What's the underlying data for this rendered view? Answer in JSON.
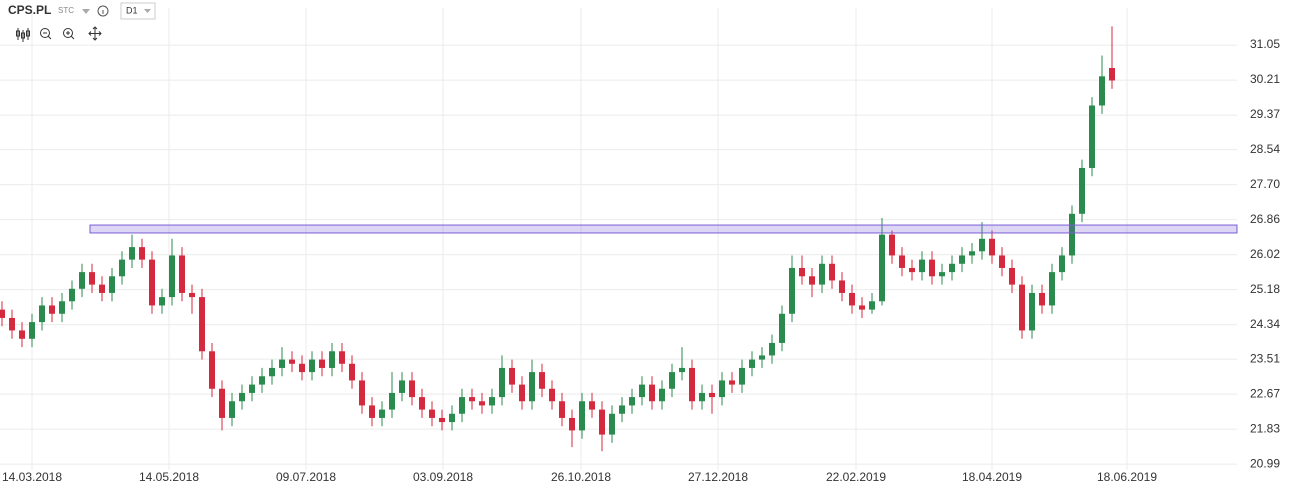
{
  "chart_data": {
    "type": "candlestick",
    "symbol": "CPS.PL",
    "source": "STC",
    "timeframe": "D1",
    "open": [
      24.7,
      24.5,
      24.2,
      24.0,
      24.4,
      24.8,
      24.6,
      24.9,
      25.2,
      25.6,
      25.3,
      25.1,
      25.5,
      25.9,
      26.2,
      25.9,
      24.8,
      25.0,
      26.0,
      25.1,
      25.0,
      23.7,
      22.8,
      22.1,
      22.5,
      22.7,
      22.9,
      23.1,
      23.3,
      23.5,
      23.4,
      23.2,
      23.5,
      23.3,
      23.7,
      23.4,
      23.0,
      22.4,
      22.1,
      22.3,
      22.7,
      23.0,
      22.6,
      22.3,
      22.1,
      22.0,
      22.2,
      22.6,
      22.5,
      22.4,
      22.6,
      23.3,
      22.9,
      22.5,
      23.2,
      22.8,
      22.5,
      22.1,
      21.8,
      22.5,
      22.3,
      21.7,
      22.2,
      22.4,
      22.6,
      22.9,
      22.5,
      22.8,
      23.2,
      23.3,
      22.5,
      22.7,
      22.6,
      23.0,
      22.9,
      23.3,
      23.5,
      23.6,
      23.9,
      24.6,
      25.7,
      25.5,
      25.3,
      25.8,
      25.4,
      25.1,
      24.8,
      24.7,
      24.9,
      26.5,
      26.0,
      25.7,
      25.6,
      25.9,
      25.5,
      25.6,
      25.8,
      26.0,
      26.1,
      26.4,
      26.0,
      25.7,
      25.3,
      24.2,
      25.1,
      24.8,
      25.6,
      26.0,
      27.0,
      28.1,
      29.6,
      30.5
    ],
    "high": [
      24.9,
      24.7,
      24.4,
      24.6,
      25.0,
      25.0,
      25.1,
      25.4,
      25.8,
      25.8,
      25.5,
      25.7,
      26.1,
      26.5,
      26.4,
      26.1,
      25.2,
      26.4,
      26.2,
      25.3,
      25.2,
      23.9,
      23.0,
      22.7,
      22.9,
      23.1,
      23.3,
      23.5,
      23.8,
      23.7,
      23.6,
      23.7,
      23.7,
      23.9,
      23.9,
      23.6,
      23.2,
      22.6,
      22.5,
      23.2,
      23.2,
      23.2,
      22.8,
      22.5,
      22.3,
      22.4,
      22.8,
      22.8,
      22.7,
      22.8,
      23.6,
      23.5,
      23.1,
      23.5,
      23.4,
      23.0,
      22.7,
      22.3,
      22.7,
      22.7,
      22.5,
      22.4,
      22.6,
      22.8,
      23.1,
      23.1,
      23.0,
      23.4,
      23.8,
      23.5,
      22.9,
      22.9,
      23.2,
      23.2,
      23.5,
      23.7,
      23.8,
      24.1,
      24.8,
      26.0,
      26.0,
      25.7,
      26.0,
      26.0,
      25.6,
      25.3,
      25.0,
      25.1,
      26.9,
      26.6,
      26.2,
      25.9,
      26.1,
      26.1,
      25.8,
      26.0,
      26.2,
      26.3,
      26.8,
      26.6,
      26.2,
      25.9,
      25.5,
      25.3,
      25.3,
      25.8,
      26.2,
      27.2,
      28.3,
      29.8,
      30.8,
      31.5
    ],
    "low": [
      24.3,
      24.0,
      23.8,
      23.8,
      24.2,
      24.4,
      24.4,
      24.7,
      25.0,
      25.1,
      24.9,
      24.9,
      25.3,
      25.7,
      25.7,
      24.6,
      24.6,
      24.8,
      24.9,
      24.6,
      23.5,
      22.6,
      21.8,
      21.9,
      22.3,
      22.5,
      22.7,
      22.9,
      23.1,
      23.2,
      23.0,
      23.0,
      23.1,
      23.1,
      23.2,
      22.8,
      22.2,
      21.9,
      21.9,
      22.1,
      22.5,
      22.4,
      22.1,
      21.9,
      21.8,
      21.8,
      22.0,
      22.3,
      22.2,
      22.2,
      22.4,
      22.7,
      22.3,
      22.3,
      22.6,
      22.3,
      21.9,
      21.4,
      21.6,
      22.1,
      21.3,
      21.5,
      22.0,
      22.2,
      22.4,
      22.3,
      22.3,
      22.6,
      23.0,
      22.3,
      22.3,
      22.2,
      22.4,
      22.7,
      22.7,
      23.1,
      23.3,
      23.4,
      23.7,
      24.4,
      25.3,
      25.0,
      25.1,
      25.2,
      24.9,
      24.6,
      24.5,
      24.6,
      24.8,
      25.8,
      25.5,
      25.4,
      25.4,
      25.3,
      25.3,
      25.4,
      25.6,
      25.8,
      25.9,
      25.8,
      25.5,
      25.1,
      24.0,
      24.0,
      24.6,
      24.6,
      25.4,
      25.8,
      26.8,
      27.9,
      29.4,
      30.0
    ],
    "close": [
      24.5,
      24.2,
      24.0,
      24.4,
      24.8,
      24.6,
      24.9,
      25.2,
      25.6,
      25.3,
      25.1,
      25.5,
      25.9,
      26.2,
      25.9,
      24.8,
      25.0,
      26.0,
      25.1,
      25.0,
      23.7,
      22.8,
      22.1,
      22.5,
      22.7,
      22.9,
      23.1,
      23.3,
      23.5,
      23.4,
      23.2,
      23.5,
      23.3,
      23.7,
      23.4,
      23.0,
      22.4,
      22.1,
      22.3,
      22.7,
      23.0,
      22.6,
      22.3,
      22.1,
      22.0,
      22.2,
      22.6,
      22.5,
      22.4,
      22.6,
      23.3,
      22.9,
      22.5,
      23.2,
      22.8,
      22.5,
      22.1,
      21.8,
      22.5,
      22.3,
      21.7,
      22.2,
      22.4,
      22.6,
      22.9,
      22.5,
      22.8,
      23.2,
      23.3,
      22.5,
      22.7,
      22.6,
      23.0,
      22.9,
      23.3,
      23.5,
      23.6,
      23.9,
      24.6,
      25.7,
      25.5,
      25.3,
      25.8,
      25.4,
      25.1,
      24.8,
      24.7,
      24.9,
      26.5,
      26.0,
      25.7,
      25.6,
      25.9,
      25.5,
      25.6,
      25.8,
      26.0,
      26.1,
      26.4,
      26.0,
      25.7,
      25.3,
      24.2,
      25.1,
      24.8,
      25.6,
      26.0,
      27.0,
      28.1,
      29.6,
      30.3,
      30.2
    ],
    "up_color": "#2b8a4e",
    "down_color": "#d42a3f",
    "zone": {
      "low": 26.54,
      "high": 26.73,
      "start": 8.8,
      "color": "#7b5cd6"
    },
    "xlim": [
      -0.2,
      123.5
    ],
    "xticks": [
      {
        "value": 3.0,
        "label": "14.03.2018"
      },
      {
        "value": 16.7,
        "label": "14.05.2018"
      },
      {
        "value": 30.4,
        "label": "09.07.2018"
      },
      {
        "value": 44.1,
        "label": "03.09.2018"
      },
      {
        "value": 57.9,
        "label": "26.10.2018"
      },
      {
        "value": 71.6,
        "label": "27.12.2018"
      },
      {
        "value": 85.4,
        "label": "22.02.2019"
      },
      {
        "value": 99.0,
        "label": "18.04.2019"
      },
      {
        "value": 112.5,
        "label": "18.06.2019"
      }
    ],
    "ylim": [
      20.85,
      31.94
    ],
    "yticks": [
      31.05,
      30.21,
      29.37,
      28.54,
      {
        "value": 27.7,
        "label": "27.70"
      },
      26.86,
      26.02,
      25.18,
      24.34,
      23.51,
      22.67,
      21.83,
      20.99
    ],
    "grid": true
  }
}
